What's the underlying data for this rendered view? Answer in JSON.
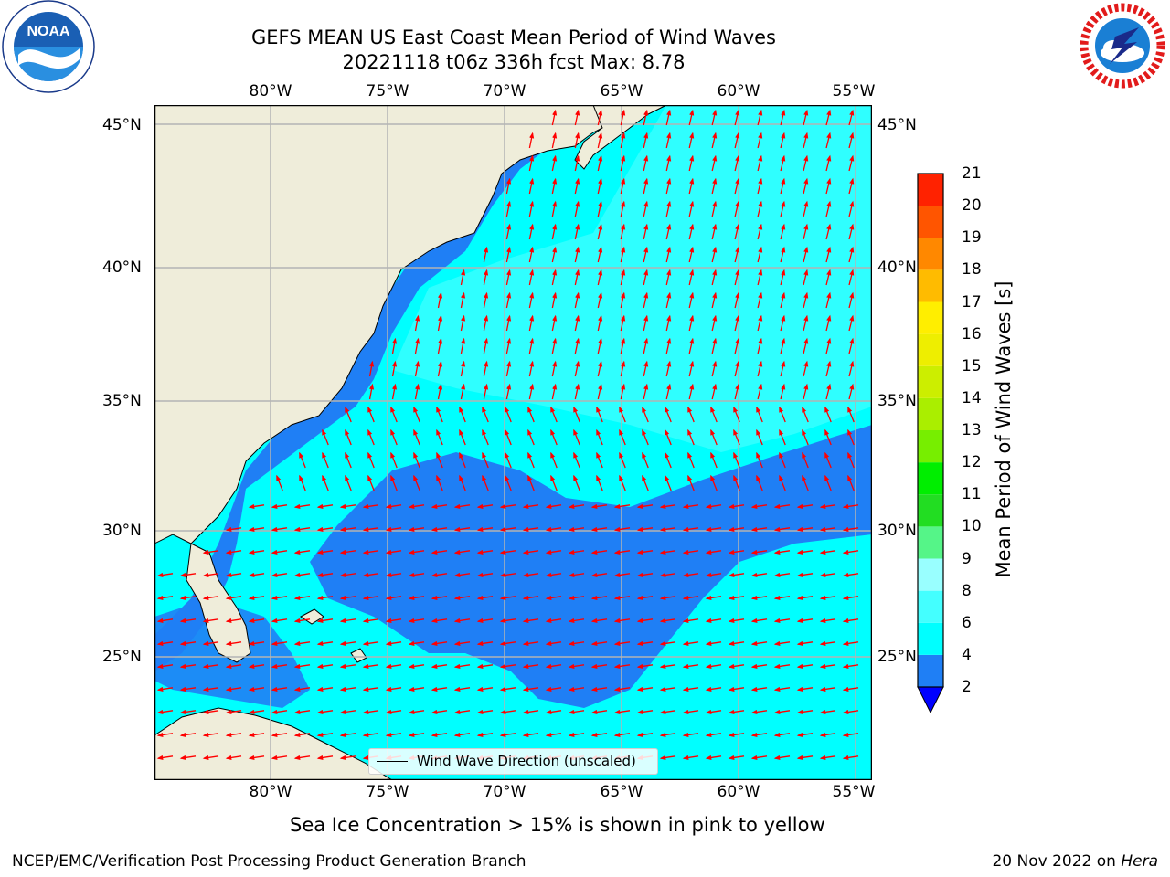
{
  "title": {
    "line1": "GEFS MEAN US East Coast Mean Period of Wind Waves",
    "line2": "20221118 t06z 336h fcst   Max: 8.78"
  },
  "map": {
    "lon_ticks": [
      "80°W",
      "75°W",
      "70°W",
      "65°W",
      "60°W",
      "55°W"
    ],
    "lat_ticks": [
      "45°N",
      "40°N",
      "35°N",
      "30°N",
      "25°N"
    ],
    "colors": {
      "land": "#efedda",
      "ocean_dark": "#1f7ff5",
      "ocean": "#00ffff",
      "ocean_light": "#66ffff",
      "arrow": "#ff0000",
      "grid": "#b4b4b4"
    }
  },
  "legend": {
    "label": "Wind Wave Direction (unscaled)"
  },
  "colorbar": {
    "title": "Mean Period of Wind Waves [s]",
    "ticks": [
      "2",
      "4",
      "6",
      "8",
      "9",
      "10",
      "11",
      "12",
      "13",
      "14",
      "15",
      "16",
      "17",
      "18",
      "19",
      "20",
      "21"
    ],
    "colors": [
      "#1f7ff5",
      "#00ffff",
      "#44ffff",
      "#99ffff",
      "#55f588",
      "#22dd22",
      "#00ee00",
      "#77ee00",
      "#aaee00",
      "#ccee00",
      "#eeee00",
      "#ffee00",
      "#ffbb00",
      "#ff8800",
      "#ff5500",
      "#ff2200"
    ],
    "underflow_color": "#0000ff"
  },
  "notes": {
    "ice": "Sea Ice Concentration > 15% is shown in pink to yellow",
    "footer_left": "NCEP/EMC/Verification Post Processing Product Generation Branch",
    "footer_date": "20 Nov 2022 on ",
    "footer_machine": "Hera"
  },
  "logos": {
    "left": "NOAA",
    "right": "NATIONAL WEATHER SERVICE"
  }
}
